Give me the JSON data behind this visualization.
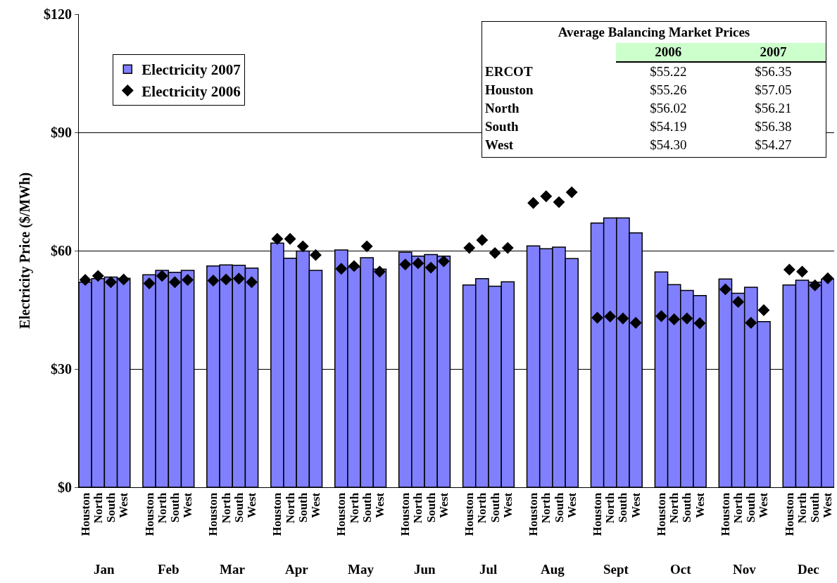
{
  "chart_data": {
    "type": "bar",
    "ylabel": "Electricity Price ($/MWh)",
    "categories": [
      "Houston",
      "North",
      "South",
      "West",
      "Houston",
      "North",
      "South",
      "West",
      "Houston",
      "North",
      "South",
      "West",
      "Houston",
      "North",
      "South",
      "West",
      "Houston",
      "North",
      "South",
      "West",
      "Houston",
      "North",
      "South",
      "West",
      "Houston",
      "North",
      "South",
      "West",
      "Houston",
      "North",
      "South",
      "West",
      "Houston",
      "North",
      "South",
      "West",
      "Houston",
      "North",
      "South",
      "West",
      "Houston",
      "North",
      "South",
      "West",
      "Houston",
      "North",
      "South",
      "West"
    ],
    "series": [
      {
        "name": "Electricity 2007",
        "color": "#8080ff",
        "values": [
          52.0,
          52.9,
          53.3,
          53.0,
          53.9,
          55.0,
          54.5,
          55.0,
          56.1,
          56.4,
          56.3,
          55.6,
          61.9,
          58.1,
          59.9,
          55.0,
          60.2,
          55.8,
          58.2,
          55.3,
          59.6,
          58.6,
          59.0,
          58.6,
          51.3,
          52.9,
          51.0,
          52.1,
          61.2,
          60.5,
          60.9,
          58.0,
          67.0,
          68.3,
          68.3,
          64.5,
          54.6,
          51.4,
          49.9,
          48.6,
          52.8,
          49.2,
          50.7,
          42.0,
          51.3,
          52.5,
          52.0,
          52.8
        ]
      },
      {
        "name": "Electricity 2006",
        "type": "scatter",
        "color": "#000000",
        "marker": "diamond",
        "values": [
          52.6,
          53.6,
          52.0,
          52.7,
          51.7,
          53.6,
          52.0,
          52.6,
          52.4,
          52.7,
          52.9,
          52.0,
          63.0,
          63.0,
          61.1,
          58.9,
          55.4,
          56.1,
          61.1,
          54.7,
          56.5,
          56.8,
          55.7,
          57.3,
          60.7,
          62.7,
          59.4,
          60.7,
          72.1,
          73.8,
          72.3,
          74.8,
          43.0,
          43.3,
          42.8,
          41.7,
          43.4,
          42.6,
          42.8,
          41.6,
          50.2,
          47.0,
          41.7,
          44.9,
          55.2,
          54.7,
          51.2,
          53.0
        ]
      }
    ],
    "ylim": [
      0,
      120
    ],
    "yticks": [
      {
        "value": 0,
        "label": "$0"
      },
      {
        "value": 30,
        "label": "$30"
      },
      {
        "value": 60,
        "label": "$60"
      },
      {
        "value": 90,
        "label": "$90"
      },
      {
        "value": 120,
        "label": "$120"
      }
    ],
    "grid": "y",
    "legend": "top left",
    "annotations": [
      "Jan",
      "Feb",
      "Mar",
      "Apr",
      "May",
      "Jun",
      "Jul",
      "Aug",
      "Sept",
      "Oct",
      "Nov",
      "Dec",
      "Average Balancing Market Prices",
      "2006",
      "2007",
      "ERCOT",
      "$55.22",
      "$56.35",
      "Houston",
      "$55.26",
      "$57.05",
      "North",
      "$56.02",
      "$56.21",
      "South",
      "$54.19",
      "$56.38",
      "West",
      "$54.30",
      "$54.27"
    ]
  }
}
